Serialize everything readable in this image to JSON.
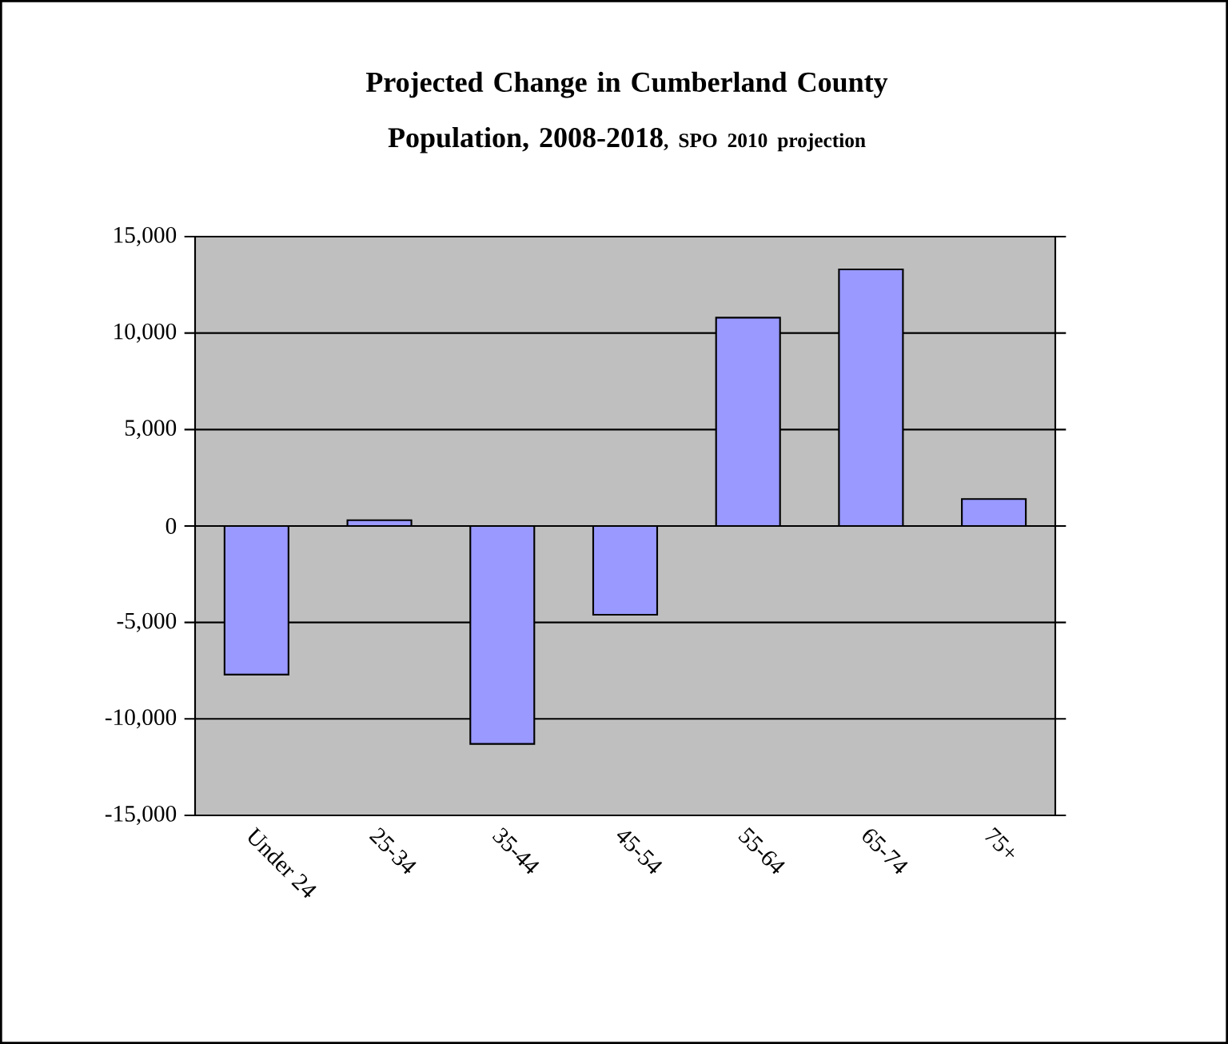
{
  "chart_data": {
    "type": "bar",
    "title": "Projected Change in Cumberland County Population, 2008-2018",
    "subtitle": ", SPO 2010 projection",
    "categories": [
      "Under 24",
      "25-34",
      "35-44",
      "45-54",
      "55-64",
      "65-74",
      "75+"
    ],
    "values": [
      -7700,
      300,
      -11300,
      -4600,
      10800,
      13300,
      1400
    ],
    "color": "#9999ff",
    "ylim": [
      -15000,
      15000
    ],
    "yticks": [
      {
        "value": -15000,
        "label": "-15,000"
      },
      {
        "value": -10000,
        "label": "-10,000"
      },
      {
        "value": -5000,
        "label": "-5,000"
      },
      0,
      {
        "value": 5000,
        "label": "5,000"
      },
      {
        "value": 10000,
        "label": "10,000"
      },
      {
        "value": 15000,
        "label": "15,000"
      }
    ],
    "grid": "y"
  }
}
